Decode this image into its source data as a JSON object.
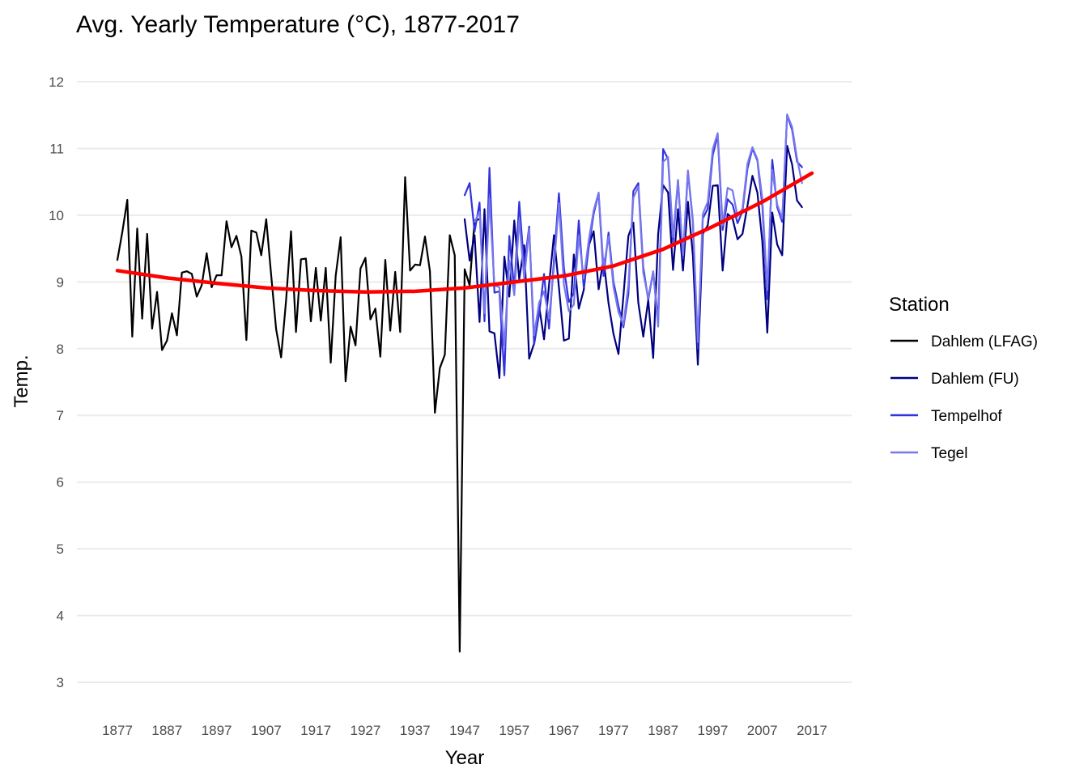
{
  "chart_data": {
    "type": "line",
    "title": "Avg. Yearly Temperature (°C), 1877-2017",
    "xlabel": "Year",
    "ylabel": "Temp.",
    "xlim": [
      1877,
      2017
    ],
    "ylim": [
      3,
      12
    ],
    "x_ticks": [
      "1877",
      "1887",
      "1897",
      "1907",
      "1917",
      "1927",
      "1937",
      "1947",
      "1957",
      "1967",
      "1977",
      "1987",
      "1997",
      "2007",
      "2017"
    ],
    "y_ticks": [
      "3",
      "4",
      "5",
      "6",
      "7",
      "8",
      "9",
      "10",
      "11",
      "12"
    ],
    "grid": "horizontal",
    "legend": {
      "title": "Station",
      "position": "right"
    },
    "series": [
      {
        "name": "Dahlem (LFAG)",
        "color": "#000000",
        "x_start": 1877,
        "values": [
          9.33,
          9.75,
          10.23,
          8.18,
          9.8,
          8.45,
          9.72,
          8.3,
          8.85,
          7.98,
          8.12,
          8.53,
          8.2,
          9.14,
          9.16,
          9.12,
          8.78,
          8.95,
          9.43,
          8.92,
          9.1,
          9.1,
          9.91,
          9.52,
          9.69,
          9.38,
          8.13,
          9.77,
          9.74,
          9.4,
          9.94,
          9.1,
          8.29,
          7.87,
          8.72,
          9.76,
          8.25,
          9.34,
          9.35,
          8.41,
          9.21,
          8.42,
          9.21,
          7.79,
          9.09,
          9.67,
          7.51,
          8.33,
          8.05,
          9.2,
          9.36,
          8.44,
          8.6,
          7.88,
          9.33,
          8.27,
          9.15,
          8.25,
          10.57,
          9.17,
          9.26,
          9.25,
          9.68,
          9.16,
          7.04,
          7.71,
          7.91,
          9.7,
          9.4,
          3.46,
          9.19,
          8.95,
          9.92,
          9.94
        ]
      },
      {
        "name": "Dahlem (FU)",
        "color": "#000080",
        "x_start": 1947,
        "values": [
          9.94,
          9.32,
          9.7,
          8.4,
          10.09,
          8.26,
          8.23,
          7.56,
          9.38,
          8.78,
          9.92,
          9.04,
          9.55,
          7.85,
          8.08,
          8.64,
          8.14,
          8.95,
          9.7,
          8.92,
          8.12,
          8.15,
          9.41,
          8.6,
          8.88,
          9.54,
          9.76,
          8.89,
          9.34,
          8.68,
          8.22,
          7.92,
          8.79,
          9.69,
          9.89,
          8.69,
          8.18,
          8.73,
          7.86,
          9.72,
          10.45,
          10.34,
          9.18,
          10.09,
          9.17,
          10.2,
          9.4,
          7.76,
          9.72,
          9.85,
          10.44,
          10.45,
          9.17,
          10.02,
          9.95,
          9.64,
          9.72,
          10.14,
          10.59,
          10.34,
          9.6,
          8.24,
          10.04,
          9.56,
          9.4,
          11.04,
          10.76,
          10.22,
          10.12
        ]
      },
      {
        "name": "Tempelhof",
        "color": "#3333dd",
        "x_start": 1947,
        "values": [
          10.3,
          10.48,
          9.75,
          10.19,
          8.41,
          10.71,
          8.84,
          8.86,
          7.6,
          9.69,
          8.89,
          10.2,
          9.22,
          9.83,
          8.06,
          8.52,
          9.12,
          8.3,
          9.33,
          10.33,
          9.21,
          8.7,
          8.83,
          9.92,
          8.92,
          9.51,
          10.02,
          10.33,
          9.09,
          9.74,
          9.0,
          8.64,
          8.32,
          8.82,
          10.36,
          10.48,
          9.22,
          8.73,
          9.15,
          8.42,
          10.99,
          10.84,
          9.6,
          10.52,
          9.35,
          10.65,
          9.9,
          8.0,
          9.95,
          10.1,
          10.9,
          11.2,
          9.78,
          10.24,
          10.16,
          9.88,
          10.06,
          10.7,
          11.0,
          10.82,
          10.14,
          8.74,
          10.83,
          10.12,
          9.9,
          11.5,
          11.28,
          10.8,
          10.72
        ]
      },
      {
        "name": "Tegel",
        "color": "#7777ee",
        "x_start": 1949,
        "values": [
          9.9,
          10.05,
          8.53,
          10.25,
          8.95,
          8.92,
          8.05,
          9.32,
          8.8,
          9.93,
          9.05,
          9.79,
          8.2,
          8.69,
          8.86,
          8.45,
          9.22,
          10.18,
          8.96,
          8.56,
          8.66,
          9.69,
          9.05,
          9.62,
          10.07,
          10.34,
          9.21,
          9.68,
          8.92,
          8.55,
          8.36,
          8.96,
          10.26,
          10.43,
          9.14,
          8.76,
          9.16,
          8.33,
          10.8,
          10.87,
          9.67,
          10.53,
          9.4,
          10.67,
          9.93,
          8.1,
          10.02,
          10.2,
          10.99,
          11.23,
          9.85,
          10.41,
          10.37,
          9.98,
          10.1,
          10.77,
          11.02,
          10.84,
          10.25,
          8.88,
          10.68,
          10.16,
          9.95,
          11.51,
          11.32,
          10.85,
          10.48
        ]
      },
      {
        "name": "Trend",
        "color": "#ff0000",
        "x": [
          1877,
          1887,
          1897,
          1907,
          1917,
          1927,
          1937,
          1947,
          1957,
          1967,
          1977,
          1987,
          1997,
          2007,
          2017
        ],
        "values": [
          9.17,
          9.06,
          8.98,
          8.91,
          8.87,
          8.85,
          8.86,
          8.91,
          9.0,
          9.09,
          9.24,
          9.49,
          9.83,
          10.2,
          10.63
        ]
      }
    ]
  }
}
